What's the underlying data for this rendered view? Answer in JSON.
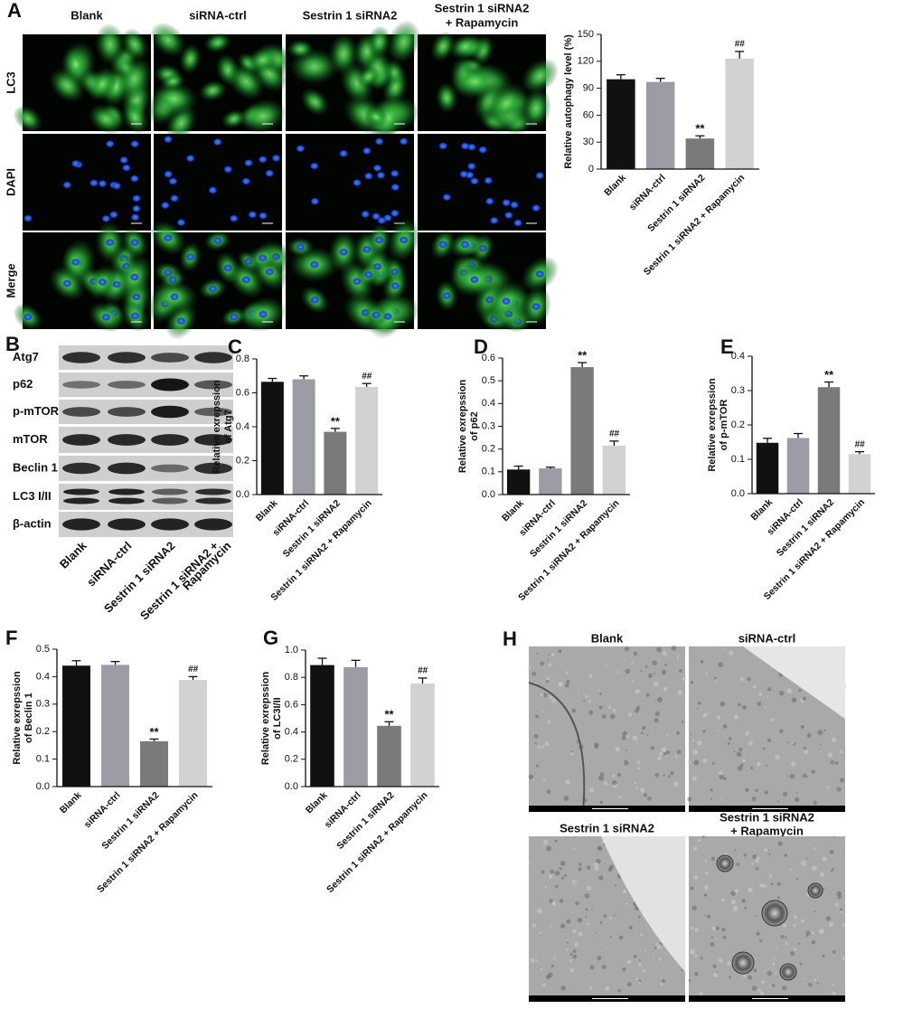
{
  "panel_a": {
    "letter": "A",
    "columns": [
      [
        "Blank"
      ],
      [
        "siRNA-ctrl"
      ],
      [
        "Sestrin 1 siRNA2"
      ],
      [
        "Sestrin 1 siRNA2",
        "+ Rapamycin"
      ]
    ],
    "rows": [
      "LC3",
      "DAPI",
      "Merge"
    ]
  },
  "panel_b": {
    "letter": "B",
    "bands": [
      "Atg7",
      "p62",
      "p-mTOR",
      "mTOR",
      "Beclin 1",
      "LC3 I/II",
      "β-actin"
    ],
    "lanes": [
      [
        "Blank"
      ],
      [
        "siRNA-ctrl"
      ],
      [
        "Sestrin 1 siRNA2"
      ],
      [
        "Sestrin 1 siRNA2 +",
        "Rapamycin"
      ]
    ]
  },
  "panel_h": {
    "letter": "H",
    "images": [
      [
        "Blank"
      ],
      [
        "siRNA-ctrl"
      ],
      [
        "Sestrin 1 siRNA2"
      ],
      [
        "Sestrin 1 siRNA2",
        "+ Rapamycin"
      ]
    ]
  },
  "chart_data": [
    {
      "type": "bar",
      "panel": "A",
      "ylabel": [
        "Relative autophagy level (%)"
      ],
      "categories": [
        "Blank",
        "siRNA-ctrl",
        "Sestrin 1 siRNA2",
        "Sestrin 1 siRNA2 + Rapamycin"
      ],
      "values": [
        100,
        97,
        34,
        123
      ],
      "errors": [
        5,
        4,
        3,
        8
      ],
      "colors": [
        "#111111",
        "#9c9ca6",
        "#7a7a7a",
        "#d2d2d2"
      ],
      "ylim": [
        0,
        150
      ],
      "yticks": [
        0,
        30,
        60,
        90,
        120,
        150
      ],
      "annotations": [
        {
          "text": "**",
          "category": "Sestrin 1 siRNA2"
        },
        {
          "text": "##",
          "category": "Sestrin 1 siRNA2 + Rapamycin"
        }
      ]
    },
    {
      "type": "bar",
      "panel": "C",
      "ylabel": [
        "Relative exrepssion",
        "of Atg7"
      ],
      "categories": [
        "Blank",
        "siRNA-ctrl",
        "Sestrin 1 siRNA2",
        "Sestrin 1 siRNA2 + Rapamycin"
      ],
      "values": [
        0.665,
        0.68,
        0.37,
        0.635
      ],
      "errors": [
        0.02,
        0.02,
        0.02,
        0.02
      ],
      "colors": [
        "#111111",
        "#9c9ca6",
        "#7a7a7a",
        "#d2d2d2"
      ],
      "ylim": [
        0,
        0.8
      ],
      "yticks": [
        {
          "value": 0,
          "label": "0.0"
        },
        0.2,
        0.4,
        0.6,
        0.8
      ],
      "annotations": [
        {
          "text": "**",
          "category": "Sestrin 1 siRNA2"
        },
        {
          "text": "##",
          "category": "Sestrin 1 siRNA2 + Rapamycin"
        }
      ]
    },
    {
      "type": "bar",
      "panel": "D",
      "ylabel": [
        "Relative exrepssion",
        "of p62"
      ],
      "categories": [
        "Blank",
        "siRNA-ctrl",
        "Sestrin 1 siRNA2",
        "Sestrin 1 siRNA2 + Rapamycin"
      ],
      "values": [
        0.11,
        0.115,
        0.56,
        0.215
      ],
      "errors": [
        0.015,
        0.005,
        0.02,
        0.02
      ],
      "colors": [
        "#111111",
        "#9c9ca6",
        "#7a7a7a",
        "#d2d2d2"
      ],
      "ylim": [
        0,
        0.6
      ],
      "yticks": [
        {
          "value": 0,
          "label": "0.0"
        },
        0.1,
        0.2,
        0.3,
        0.4,
        0.5,
        0.6
      ],
      "annotations": [
        {
          "text": "**",
          "category": "Sestrin 1 siRNA2"
        },
        {
          "text": "##",
          "category": "Sestrin 1 siRNA2 + Rapamycin"
        }
      ]
    },
    {
      "type": "bar",
      "panel": "E",
      "ylabel": [
        "Relative exrepssion",
        "of p-mTOR"
      ],
      "categories": [
        "Blank",
        "siRNA-ctrl",
        "Sestrin 1 siRNA2",
        "Sestrin 1 siRNA2 + Rapamycin"
      ],
      "values": [
        0.148,
        0.162,
        0.31,
        0.115
      ],
      "errors": [
        0.013,
        0.013,
        0.015,
        0.007
      ],
      "colors": [
        "#111111",
        "#9c9ca6",
        "#7a7a7a",
        "#d2d2d2"
      ],
      "ylim": [
        0,
        0.4
      ],
      "yticks": [
        {
          "value": 0,
          "label": "0.0"
        },
        0.1,
        0.2,
        0.3,
        0.4
      ],
      "annotations": [
        {
          "text": "**",
          "category": "Sestrin 1 siRNA2"
        },
        {
          "text": "##",
          "category": "Sestrin 1 siRNA2 + Rapamycin"
        }
      ]
    },
    {
      "type": "bar",
      "panel": "F",
      "ylabel": [
        "Relative exrepssion",
        "of Beclin 1"
      ],
      "categories": [
        "Blank",
        "siRNA-ctrl",
        "Sestrin 1 siRNA2",
        "Sestrin 1 siRNA2 + Rapamycin"
      ],
      "values": [
        0.44,
        0.443,
        0.165,
        0.388
      ],
      "errors": [
        0.018,
        0.012,
        0.008,
        0.012
      ],
      "colors": [
        "#111111",
        "#9c9ca6",
        "#7a7a7a",
        "#d2d2d2"
      ],
      "ylim": [
        0,
        0.5
      ],
      "yticks": [
        {
          "value": 0,
          "label": "0.0"
        },
        0.1,
        0.2,
        0.3,
        0.4,
        0.5
      ],
      "annotations": [
        {
          "text": "**",
          "category": "Sestrin 1 siRNA2"
        },
        {
          "text": "##",
          "category": "Sestrin 1 siRNA2 + Rapamycin"
        }
      ]
    },
    {
      "type": "bar",
      "panel": "G",
      "ylabel": [
        "Relative exrepssion",
        "of LC3I/II"
      ],
      "categories": [
        "Blank",
        "siRNA-ctrl",
        "Sestrin 1 siRNA2",
        "Sestrin 1 siRNA2 + Rapamycin"
      ],
      "values": [
        0.89,
        0.875,
        0.445,
        0.755
      ],
      "errors": [
        0.05,
        0.05,
        0.03,
        0.04
      ],
      "colors": [
        "#111111",
        "#9c9ca6",
        "#7a7a7a",
        "#d2d2d2"
      ],
      "ylim": [
        0,
        1
      ],
      "yticks": [
        {
          "value": 0,
          "label": "0.0"
        },
        0.2,
        0.4,
        0.6,
        0.8,
        {
          "value": 1,
          "label": "1.0"
        }
      ],
      "annotations": [
        {
          "text": "**",
          "category": "Sestrin 1 siRNA2"
        },
        {
          "text": "##",
          "category": "Sestrin 1 siRNA2 + Rapamycin"
        }
      ]
    }
  ]
}
